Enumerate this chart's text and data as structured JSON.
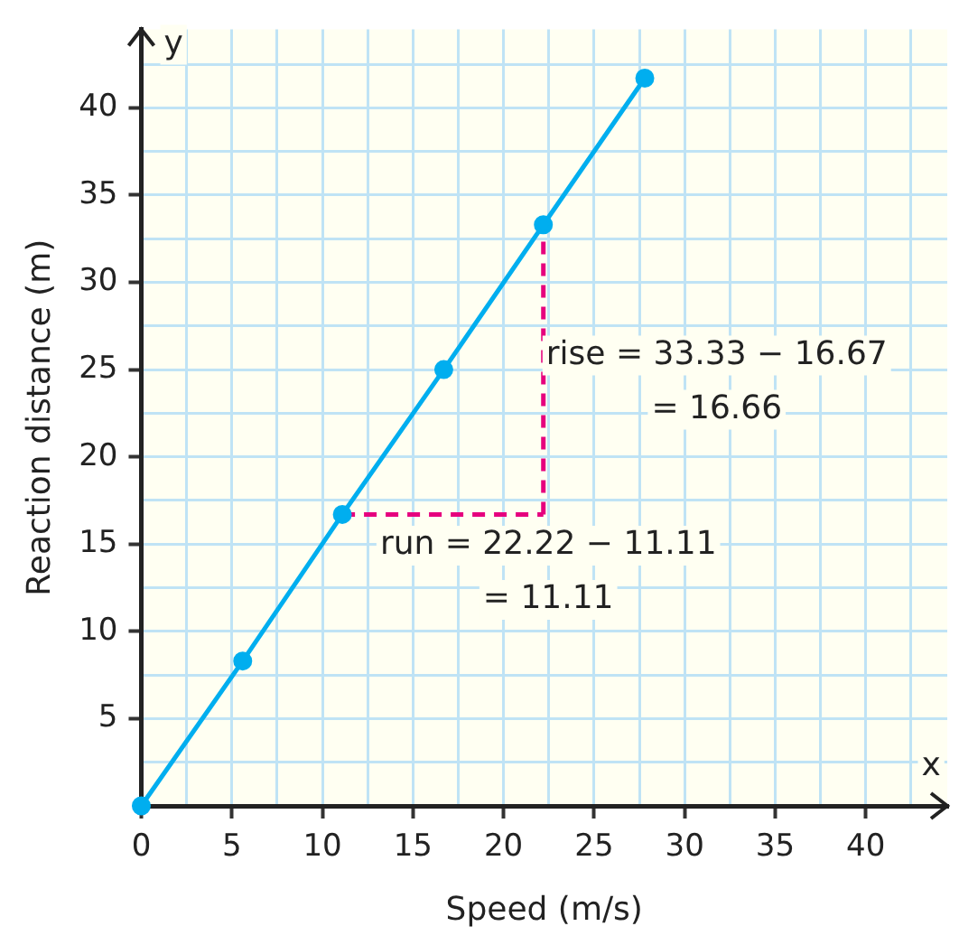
{
  "chart_data": {
    "type": "line",
    "xlabel": "Speed (m/s)",
    "ylabel": "Reaction distance (m)",
    "xlim": [
      0,
      44.5
    ],
    "ylim": [
      0,
      44.5
    ],
    "xticks": [
      0,
      {
        "value": 2.5,
        "label": null
      },
      5,
      {
        "value": 7.5,
        "label": null
      },
      10,
      {
        "value": 12.5,
        "label": null
      },
      15,
      {
        "value": 17.5,
        "label": null
      },
      20,
      {
        "value": 22.5,
        "label": null
      },
      25,
      {
        "value": 27.5,
        "label": null
      },
      30,
      {
        "value": 32.5,
        "label": null
      },
      35,
      {
        "value": 37.5,
        "label": null
      },
      40,
      {
        "value": 42.5,
        "label": null
      }
    ],
    "yticks": [
      {
        "value": 0,
        "label": null
      },
      {
        "value": 2.5,
        "label": null
      },
      5,
      {
        "value": 7.5,
        "label": null
      },
      10,
      {
        "value": 12.5,
        "label": null
      },
      15,
      {
        "value": 17.5,
        "label": null
      },
      20,
      {
        "value": 22.5,
        "label": null
      },
      25,
      {
        "value": 27.5,
        "label": null
      },
      30,
      {
        "value": 32.5,
        "label": null
      },
      35,
      {
        "value": 37.5,
        "label": null
      },
      40,
      {
        "value": 42.5,
        "label": null
      }
    ],
    "grid": true,
    "legend": false,
    "marker": "circle",
    "line_style": "solid",
    "series": [
      {
        "color": "#00aeef",
        "x": [
          0,
          5.6,
          11.1,
          16.7,
          22.2,
          27.8
        ],
        "values": [
          0,
          8.3,
          16.7,
          25,
          33.3,
          41.7
        ]
      },
      {
        "color": "#e6007e",
        "x": [
          11.1,
          22.2
        ],
        "values": [
          16.7,
          16.7
        ],
        "marker": "none",
        "line_style": "dashed"
      },
      {
        "color": "#e6007e",
        "x": [
          22.2,
          22.2
        ],
        "values": [
          16.7,
          33.3
        ],
        "marker": "none",
        "line_style": "dashed"
      }
    ],
    "annotations": [
      "rise = 33.33 − 16.67\n= 16.66",
      "run = 22.22 − 11.11\n= 11.11",
      "y",
      "x"
    ]
  }
}
